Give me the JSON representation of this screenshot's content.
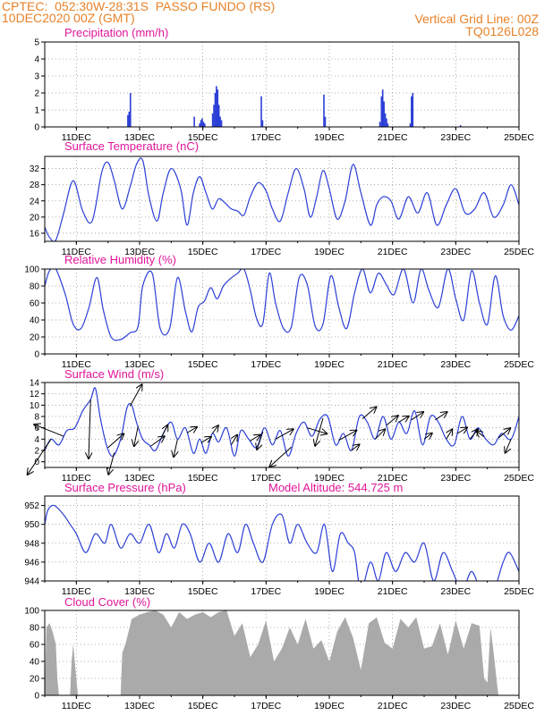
{
  "header": {
    "line1_left": "CPTEC:  052:30W-28:31S  PASSO FUNDO (RS)",
    "line2_left": "10DEC2020 00Z (GMT)",
    "line1_right": "Vertical Grid Line: 00Z",
    "line2_right": "TQ0126L028"
  },
  "colors": {
    "header": "#e8822a",
    "title": "#e0169a",
    "line": "#2b3fd6",
    "cloud": "#aaaaaa",
    "grid": "#999999"
  },
  "chart_data": [
    {
      "id": "precip",
      "type": "bar",
      "title": "Precipitation (mm/h)",
      "xlim": [
        0,
        15
      ],
      "ylim": [
        0,
        5
      ],
      "xticks": [
        {
          "x": 1,
          "label": "11DEC"
        },
        {
          "x": 3,
          "label": "13DEC"
        },
        {
          "x": 5,
          "label": "15DEC"
        },
        {
          "x": 7,
          "label": "17DEC"
        },
        {
          "x": 9,
          "label": "19DEC"
        },
        {
          "x": 11,
          "label": "21DEC"
        },
        {
          "x": 13,
          "label": "23DEC"
        },
        {
          "x": 15,
          "label": "25DEC"
        }
      ],
      "yticks": [
        0,
        1,
        2,
        3,
        4,
        5
      ],
      "bars": [
        [
          2.63,
          0.7
        ],
        [
          2.67,
          0.9
        ],
        [
          2.71,
          2.0
        ],
        [
          4.73,
          0.6
        ],
        [
          4.9,
          0.2
        ],
        [
          4.94,
          0.4
        ],
        [
          4.98,
          0.5
        ],
        [
          5.02,
          0.3
        ],
        [
          5.06,
          0.2
        ],
        [
          5.31,
          0.8
        ],
        [
          5.35,
          1.3
        ],
        [
          5.39,
          2.0
        ],
        [
          5.43,
          2.4
        ],
        [
          5.47,
          2.2
        ],
        [
          5.51,
          1.3
        ],
        [
          5.55,
          0.6
        ],
        [
          5.59,
          0.4
        ],
        [
          6.85,
          1.8
        ],
        [
          6.89,
          0.4
        ],
        [
          8.83,
          1.9
        ],
        [
          8.87,
          0.6
        ],
        [
          10.6,
          0.3
        ],
        [
          10.65,
          1.8
        ],
        [
          10.69,
          2.2
        ],
        [
          10.73,
          1.5
        ],
        [
          10.77,
          0.8
        ],
        [
          10.81,
          0.5
        ],
        [
          10.85,
          0.2
        ],
        [
          11.56,
          0.2
        ],
        [
          11.6,
          1.8
        ],
        [
          11.64,
          2.0
        ],
        [
          13.15,
          0.1
        ]
      ]
    },
    {
      "id": "temp",
      "type": "line",
      "title": "Surface Temperature (nC)",
      "xlim": [
        0,
        15
      ],
      "ylim": [
        14,
        35
      ],
      "xticks": [
        {
          "x": 1,
          "label": "11DEC"
        },
        {
          "x": 3,
          "label": "13DEC"
        },
        {
          "x": 5,
          "label": "15DEC"
        },
        {
          "x": 7,
          "label": "17DEC"
        },
        {
          "x": 9,
          "label": "19DEC"
        },
        {
          "x": 11,
          "label": "21DEC"
        },
        {
          "x": 13,
          "label": "23DEC"
        },
        {
          "x": 15,
          "label": "25DEC"
        }
      ],
      "yticks": [
        16,
        20,
        24,
        28,
        32
      ],
      "x": [
        0,
        0.15,
        0.35,
        0.6,
        0.9,
        1.2,
        1.5,
        1.8,
        2.0,
        2.2,
        2.45,
        2.7,
        2.9,
        3.1,
        3.3,
        3.55,
        3.75,
        4.0,
        4.3,
        4.5,
        4.7,
        4.9,
        5.1,
        5.3,
        5.5,
        5.7,
        5.9,
        6.1,
        6.3,
        6.5,
        6.75,
        7.0,
        7.2,
        7.45,
        7.7,
        7.95,
        8.2,
        8.4,
        8.6,
        8.8,
        9.0,
        9.25,
        9.5,
        9.75,
        10.0,
        10.3,
        10.5,
        10.7,
        10.95,
        11.2,
        11.5,
        11.8,
        12.1,
        12.4,
        12.7,
        13.0,
        13.3,
        13.6,
        13.9,
        14.2,
        14.5,
        14.75,
        15.0
      ],
      "y": [
        17.5,
        15,
        14.3,
        21,
        29,
        21.5,
        19,
        31,
        33.5,
        29,
        22,
        27.5,
        33,
        34,
        25,
        19,
        26,
        32,
        27,
        18,
        26,
        30,
        26,
        22,
        24.5,
        23.5,
        22,
        21.5,
        20.5,
        25,
        28.5,
        26.5,
        22,
        19,
        26,
        32,
        27,
        20,
        25,
        31.5,
        27,
        19.5,
        24,
        33,
        26,
        18,
        23,
        25,
        24,
        19.5,
        25,
        21,
        26,
        18,
        23,
        27,
        21,
        22,
        26,
        20,
        23,
        28,
        23
      ]
    },
    {
      "id": "rh",
      "type": "line",
      "title": "Relative Humidity (%)",
      "xlim": [
        0,
        15
      ],
      "ylim": [
        0,
        100
      ],
      "xticks": [
        {
          "x": 1,
          "label": "11DEC"
        },
        {
          "x": 3,
          "label": "13DEC"
        },
        {
          "x": 5,
          "label": "15DEC"
        },
        {
          "x": 7,
          "label": "17DEC"
        },
        {
          "x": 9,
          "label": "19DEC"
        },
        {
          "x": 11,
          "label": "21DEC"
        },
        {
          "x": 13,
          "label": "23DEC"
        },
        {
          "x": 15,
          "label": "25DEC"
        }
      ],
      "yticks": [
        0,
        20,
        40,
        60,
        80,
        100
      ],
      "x": [
        0,
        0.15,
        0.35,
        0.65,
        0.9,
        1.15,
        1.4,
        1.65,
        1.85,
        2.1,
        2.4,
        2.7,
        2.95,
        3.1,
        3.4,
        3.65,
        3.95,
        4.2,
        4.45,
        4.65,
        4.85,
        5.05,
        5.25,
        5.45,
        5.65,
        5.85,
        6.1,
        6.3,
        6.5,
        6.7,
        6.9,
        7.1,
        7.3,
        7.55,
        7.8,
        8.05,
        8.3,
        8.55,
        8.8,
        9.05,
        9.3,
        9.55,
        9.8,
        10.05,
        10.3,
        10.55,
        10.8,
        11.05,
        11.35,
        11.65,
        11.9,
        12.15,
        12.45,
        12.75,
        13.0,
        13.25,
        13.5,
        13.75,
        14.0,
        14.25,
        14.5,
        14.75,
        15.0
      ],
      "y": [
        80,
        98,
        100,
        70,
        35,
        30,
        55,
        90,
        52,
        20,
        17,
        25,
        32,
        80,
        95,
        30,
        30,
        90,
        50,
        26,
        55,
        62,
        78,
        65,
        80,
        88,
        95,
        100,
        75,
        42,
        36,
        95,
        60,
        30,
        32,
        90,
        82,
        33,
        35,
        92,
        55,
        30,
        72,
        100,
        72,
        95,
        82,
        70,
        100,
        60,
        100,
        75,
        55,
        100,
        65,
        40,
        98,
        60,
        35,
        92,
        45,
        28,
        45
      ]
    },
    {
      "id": "wind",
      "type": "line",
      "title": "Surface Wind (m/s)",
      "xlim": [
        0,
        15
      ],
      "ylim": [
        -1,
        14
      ],
      "xticks": [
        {
          "x": 1,
          "label": "11DEC"
        },
        {
          "x": 3,
          "label": "13DEC"
        },
        {
          "x": 5,
          "label": "15DEC"
        },
        {
          "x": 7,
          "label": "17DEC"
        },
        {
          "x": 9,
          "label": "19DEC"
        },
        {
          "x": 11,
          "label": "21DEC"
        },
        {
          "x": 13,
          "label": "23DEC"
        },
        {
          "x": 15,
          "label": "25DEC"
        }
      ],
      "yticks": [
        0,
        2,
        4,
        6,
        8,
        10,
        12,
        14
      ],
      "x": [
        0,
        0.2,
        0.45,
        0.7,
        0.95,
        1.2,
        1.45,
        1.6,
        1.75,
        1.95,
        2.15,
        2.4,
        2.6,
        2.75,
        2.9,
        3.1,
        3.3,
        3.5,
        3.75,
        4.0,
        4.2,
        4.45,
        4.7,
        4.9,
        5.1,
        5.3,
        5.5,
        5.75,
        6.0,
        6.2,
        6.45,
        6.7,
        6.95,
        7.2,
        7.45,
        7.7,
        7.95,
        8.2,
        8.45,
        8.7,
        8.95,
        9.2,
        9.45,
        9.7,
        9.95,
        10.2,
        10.45,
        10.7,
        10.95,
        11.2,
        11.45,
        11.7,
        11.95,
        12.2,
        12.45,
        12.7,
        12.95,
        13.2,
        13.45,
        13.7,
        13.95,
        14.2,
        14.45,
        14.75,
        15.0
      ],
      "y": [
        2,
        4,
        3,
        5.5,
        6,
        9,
        11,
        13,
        8,
        3,
        1,
        4,
        9.5,
        10,
        7,
        4,
        3,
        2,
        5,
        7,
        4,
        6,
        1.5,
        4,
        1.5,
        5,
        3.5,
        6,
        1,
        5.5,
        4,
        2.5,
        6,
        3,
        5.5,
        1,
        5,
        7,
        4.5,
        7.5,
        8,
        3,
        5,
        2,
        8,
        7,
        4,
        8,
        4,
        7,
        5,
        9,
        3,
        8,
        7,
        4,
        3,
        8,
        4,
        6,
        4,
        3,
        5,
        4,
        8
      ]
    },
    {
      "id": "pressure",
      "type": "line",
      "title": "Surface Pressure (hPa)",
      "annotation": "Model Altitude: 544.725 m",
      "xlim": [
        0,
        15
      ],
      "ylim": [
        944,
        953
      ],
      "xticks": [
        {
          "x": 1,
          "label": "11DEC"
        },
        {
          "x": 3,
          "label": "13DEC"
        },
        {
          "x": 5,
          "label": "15DEC"
        },
        {
          "x": 7,
          "label": "17DEC"
        },
        {
          "x": 9,
          "label": "19DEC"
        },
        {
          "x": 11,
          "label": "21DEC"
        },
        {
          "x": 13,
          "label": "23DEC"
        },
        {
          "x": 15,
          "label": "25DEC"
        }
      ],
      "yticks": [
        944,
        946,
        948,
        950,
        952
      ],
      "x": [
        0,
        0.1,
        0.3,
        0.6,
        0.8,
        1.0,
        1.3,
        1.6,
        1.9,
        2.1,
        2.4,
        2.7,
        3.0,
        3.3,
        3.6,
        3.85,
        4.1,
        4.35,
        4.6,
        4.9,
        5.2,
        5.5,
        5.8,
        6.1,
        6.35,
        6.6,
        6.9,
        7.2,
        7.5,
        7.75,
        8.0,
        8.3,
        8.6,
        8.85,
        9.1,
        9.35,
        9.6,
        9.8,
        10.0,
        10.3,
        10.55,
        10.8,
        11.1,
        11.4,
        11.7,
        12.0,
        12.3,
        12.6,
        12.9,
        13.2,
        13.5,
        13.8,
        14.0,
        14.2,
        14.5,
        14.7,
        15.0
      ],
      "y": [
        950,
        951.5,
        952,
        951,
        950,
        949,
        947,
        949,
        948,
        950,
        947.5,
        949,
        948,
        950,
        947,
        949,
        947.5,
        950,
        949,
        946,
        948,
        946,
        949,
        947,
        950,
        948,
        946,
        950,
        951,
        948,
        950,
        948,
        947,
        950,
        945,
        949,
        948,
        947,
        943,
        946,
        944,
        947,
        945,
        947,
        946,
        948,
        944,
        947,
        945,
        943,
        945,
        943,
        944,
        943,
        946,
        947,
        945
      ]
    },
    {
      "id": "cloud",
      "type": "area",
      "title": "Cloud Cover (%)",
      "xlim": [
        0,
        15
      ],
      "ylim": [
        0,
        100
      ],
      "xticks": [
        {
          "x": 1,
          "label": "11DEC"
        },
        {
          "x": 3,
          "label": "13DEC"
        },
        {
          "x": 5,
          "label": "15DEC"
        },
        {
          "x": 7,
          "label": "17DEC"
        },
        {
          "x": 9,
          "label": "19DEC"
        },
        {
          "x": 11,
          "label": "21DEC"
        },
        {
          "x": 13,
          "label": "23DEC"
        },
        {
          "x": 15,
          "label": "25DEC"
        }
      ],
      "yticks": [
        0,
        20,
        40,
        60,
        80,
        100
      ],
      "x": [
        0,
        0.05,
        0.15,
        0.25,
        0.35,
        0.4,
        0.45,
        0.5,
        0.7,
        0.8,
        0.85,
        0.9,
        1.0,
        1.05,
        1.1,
        1.15,
        1.25,
        1.3,
        1.5,
        1.7,
        1.8,
        2.4,
        2.45,
        2.55,
        2.75,
        3.0,
        3.25,
        3.5,
        3.75,
        4.0,
        4.25,
        4.5,
        4.75,
        5.0,
        5.25,
        5.5,
        5.75,
        6.0,
        6.25,
        6.5,
        6.75,
        7.0,
        7.25,
        7.5,
        7.75,
        8.0,
        8.25,
        8.5,
        8.75,
        9.0,
        9.25,
        9.5,
        9.75,
        10.0,
        10.25,
        10.5,
        10.75,
        11.0,
        11.25,
        11.5,
        11.75,
        12.0,
        12.25,
        12.5,
        12.75,
        13.0,
        13.25,
        13.5,
        13.75,
        13.9,
        14.0,
        14.1,
        14.2,
        14.3,
        14.35,
        14.5,
        15.0
      ],
      "y": [
        0,
        80,
        85,
        75,
        60,
        20,
        0,
        0,
        0,
        0,
        40,
        60,
        20,
        0,
        0,
        0,
        0,
        0,
        0,
        0,
        0,
        0,
        50,
        60,
        90,
        95,
        98,
        100,
        95,
        80,
        98,
        90,
        95,
        98,
        92,
        98,
        100,
        70,
        85,
        45,
        60,
        88,
        40,
        55,
        80,
        60,
        90,
        55,
        65,
        40,
        75,
        92,
        68,
        30,
        85,
        92,
        62,
        55,
        90,
        80,
        92,
        55,
        58,
        85,
        48,
        88,
        55,
        85,
        82,
        20,
        15,
        80,
        50,
        15,
        0,
        0,
        0
      ]
    }
  ]
}
